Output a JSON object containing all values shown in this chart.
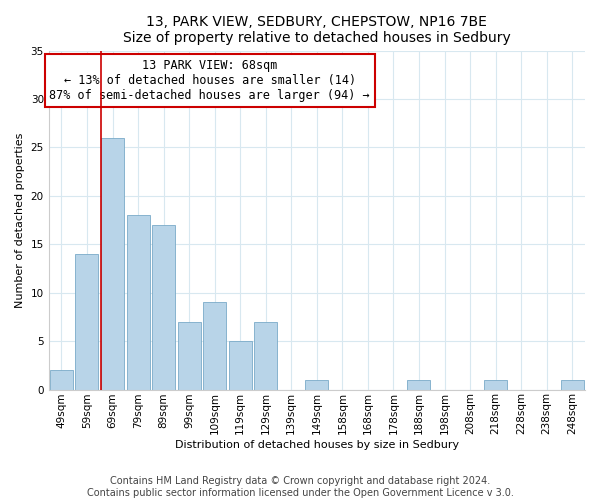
{
  "title1": "13, PARK VIEW, SEDBURY, CHEPSTOW, NP16 7BE",
  "title2": "Size of property relative to detached houses in Sedbury",
  "xlabel": "Distribution of detached houses by size in Sedbury",
  "ylabel": "Number of detached properties",
  "footnote1": "Contains HM Land Registry data © Crown copyright and database right 2024.",
  "footnote2": "Contains public sector information licensed under the Open Government Licence v 3.0.",
  "bar_labels": [
    "49sqm",
    "59sqm",
    "69sqm",
    "79sqm",
    "89sqm",
    "99sqm",
    "109sqm",
    "119sqm",
    "129sqm",
    "139sqm",
    "149sqm",
    "158sqm",
    "168sqm",
    "178sqm",
    "188sqm",
    "198sqm",
    "208sqm",
    "218sqm",
    "228sqm",
    "238sqm",
    "248sqm"
  ],
  "bar_values": [
    2,
    14,
    26,
    18,
    17,
    7,
    9,
    5,
    7,
    0,
    1,
    0,
    0,
    0,
    1,
    0,
    0,
    1,
    0,
    0,
    1
  ],
  "bar_color": "#b8d4e8",
  "bar_edge_color": "#7aaac8",
  "ylim": [
    0,
    35
  ],
  "yticks": [
    0,
    5,
    10,
    15,
    20,
    25,
    30,
    35
  ],
  "property_line_index": 2,
  "property_line_color": "#cc0000",
  "annotation_title": "13 PARK VIEW: 68sqm",
  "annotation_line1": "← 13% of detached houses are smaller (14)",
  "annotation_line2": "87% of semi-detached houses are larger (94) →",
  "annotation_box_edge": "#cc0000",
  "annotation_box_face": "#ffffff",
  "title_fontsize": 10,
  "axis_label_fontsize": 8,
  "tick_fontsize": 7.5,
  "annotation_fontsize": 8.5,
  "footnote_fontsize": 7
}
